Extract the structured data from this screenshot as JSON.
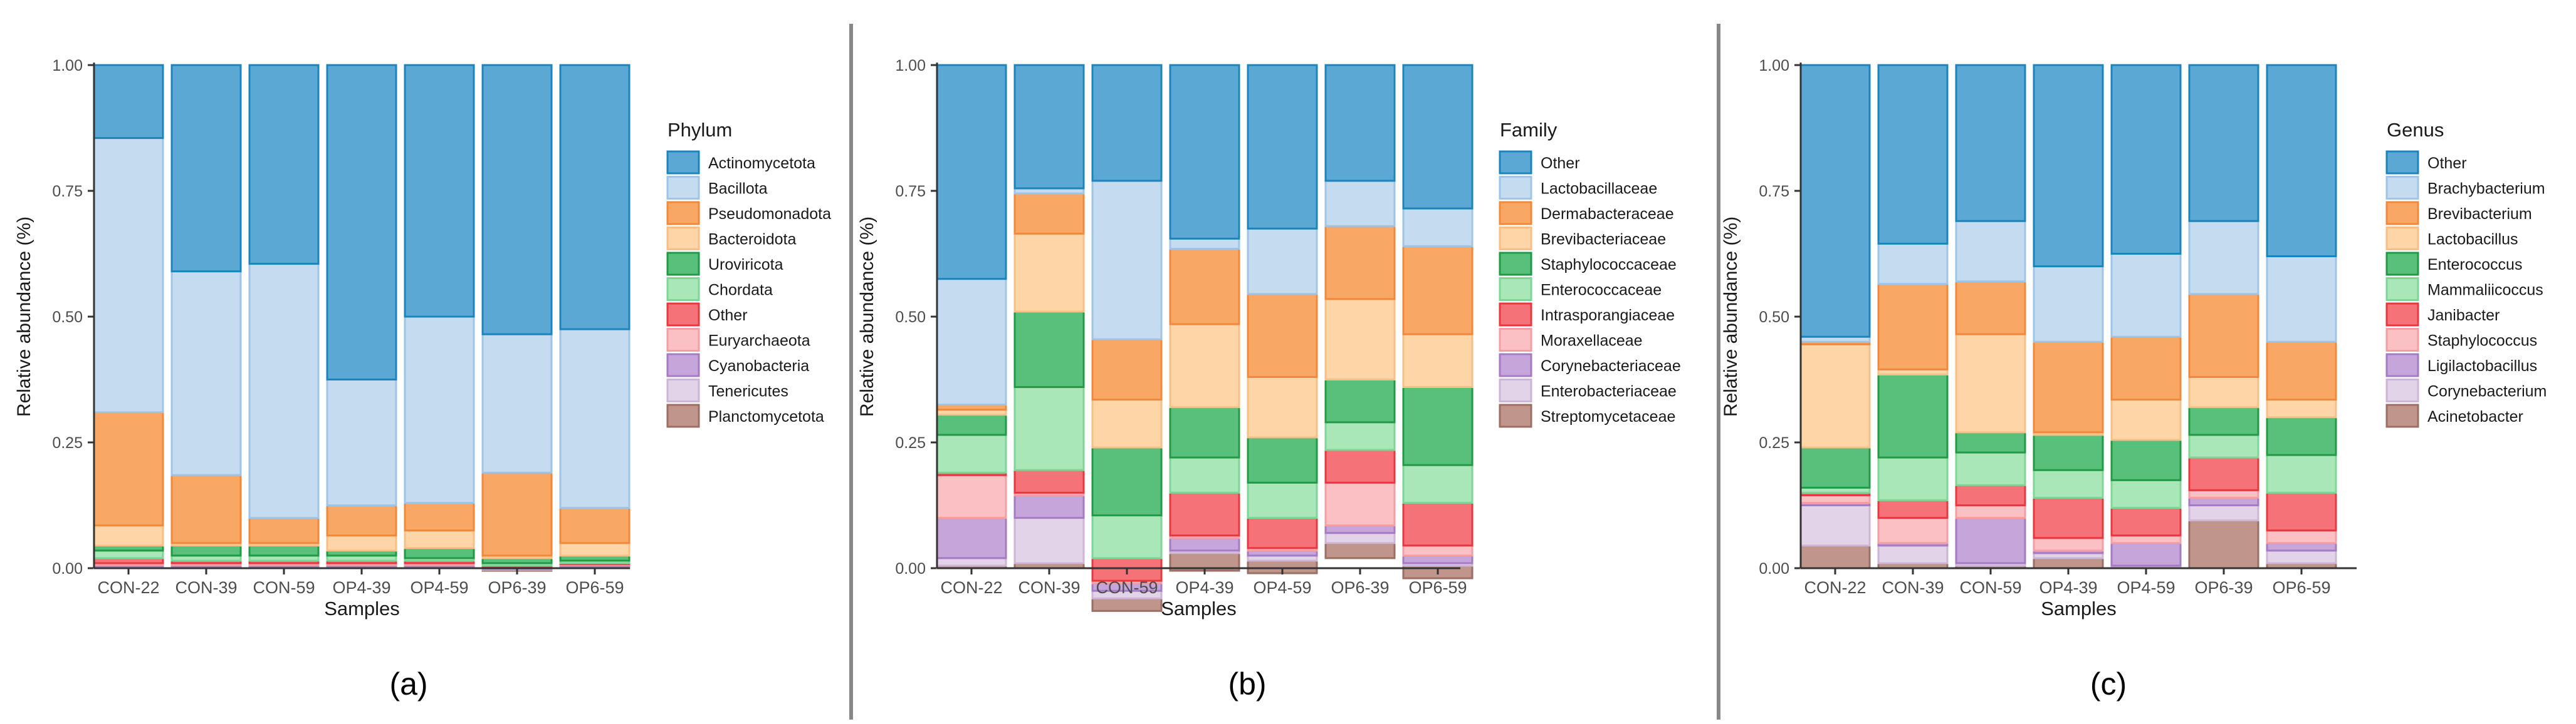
{
  "colors": {
    "palette": [
      "#5ba8d4",
      "#c5dcf0",
      "#f9a765",
      "#fdd5a7",
      "#58c07a",
      "#a9e6b8",
      "#f57279",
      "#fbc0c4",
      "#c5a5da",
      "#e3d3e8",
      "#c0958c"
    ],
    "edges": [
      "#1c84bc",
      "#9fc4e6",
      "#f2893a",
      "#f7bf85",
      "#229a45",
      "#7fd596",
      "#e7383f",
      "#f49da3",
      "#a57bc4",
      "#cdb6d5",
      "#9d6e63"
    ],
    "axis": "#333333",
    "divider": "#888888"
  },
  "chart_data": [
    {
      "type": "bar",
      "stacked": true,
      "panel_label": "(a)",
      "xlabel": "Samples",
      "ylabel": "Relative abundance (%)",
      "ylim": [
        0,
        1
      ],
      "yticks": [
        "0.00",
        "0.25",
        "0.50",
        "0.75",
        "1.00"
      ],
      "categories": [
        "CON-22",
        "CON-39",
        "CON-59",
        "OP4-39",
        "OP4-59",
        "OP6-39",
        "OP6-59"
      ],
      "legend_title": "Phylum",
      "series": [
        {
          "name": "Actinomycetota",
          "values": [
            0.145,
            0.41,
            0.395,
            0.625,
            0.5,
            0.535,
            0.525
          ]
        },
        {
          "name": "Bacillota",
          "values": [
            0.545,
            0.405,
            0.505,
            0.25,
            0.37,
            0.275,
            0.355
          ]
        },
        {
          "name": "Pseudomonadota",
          "values": [
            0.225,
            0.135,
            0.05,
            0.06,
            0.055,
            0.165,
            0.07
          ]
        },
        {
          "name": "Bacteroidota",
          "values": [
            0.04,
            0.005,
            0.005,
            0.03,
            0.035,
            0.005,
            0.025
          ]
        },
        {
          "name": "Uroviricota",
          "values": [
            0.01,
            0.02,
            0.02,
            0.01,
            0.02,
            0.01,
            0.01
          ]
        },
        {
          "name": "Chordata",
          "values": [
            0.015,
            0.01,
            0.01,
            0.01,
            0.005,
            0.005,
            0.005
          ]
        },
        {
          "name": "Other",
          "values": [
            0.01,
            0.005,
            0.005,
            0.005,
            0.005,
            0.002,
            0.002
          ]
        },
        {
          "name": "Euryarchaeota",
          "values": [
            0.004,
            0.004,
            0.004,
            0.004,
            0.004,
            0.002,
            0.002
          ]
        },
        {
          "name": "Cyanobacteria",
          "values": [
            0.002,
            0.002,
            0.002,
            0.002,
            0.002,
            0.002,
            0.002
          ]
        },
        {
          "name": "Tenericutes",
          "values": [
            0.002,
            0.002,
            0.002,
            0.002,
            0.002,
            0.002,
            0.002
          ]
        },
        {
          "name": "Planctomycetota",
          "values": [
            0.002,
            0.002,
            0.002,
            0.002,
            0.002,
            0.002,
            0.002
          ]
        }
      ]
    },
    {
      "type": "bar",
      "stacked": true,
      "panel_label": "(b)",
      "xlabel": "Samples",
      "ylabel": "Relative abundance (%)",
      "ylim": [
        0,
        1
      ],
      "yticks": [
        "0.00",
        "0.25",
        "0.50",
        "0.75",
        "1.00"
      ],
      "categories": [
        "CON-22",
        "CON-39",
        "CON-59",
        "OP4-39",
        "OP4-59",
        "OP6-39",
        "OP6-59"
      ],
      "legend_title": "Family",
      "series": [
        {
          "name": "Other",
          "values": [
            0.425,
            0.245,
            0.23,
            0.345,
            0.325,
            0.23,
            0.285
          ]
        },
        {
          "name": "Lactobacillaceae",
          "values": [
            0.25,
            0.01,
            0.315,
            0.02,
            0.13,
            0.09,
            0.075
          ]
        },
        {
          "name": "Dermabacteraceae",
          "values": [
            0.01,
            0.08,
            0.12,
            0.15,
            0.165,
            0.145,
            0.175
          ]
        },
        {
          "name": "Brevibacteriaceae",
          "values": [
            0.01,
            0.155,
            0.095,
            0.165,
            0.12,
            0.16,
            0.105
          ]
        },
        {
          "name": "Staphylococcaceae",
          "values": [
            0.04,
            0.15,
            0.135,
            0.1,
            0.09,
            0.085,
            0.155
          ]
        },
        {
          "name": "Enterococcaceae",
          "values": [
            0.075,
            0.165,
            0.085,
            0.07,
            0.07,
            0.055,
            0.075
          ]
        },
        {
          "name": "Intrasporangiaceae",
          "values": [
            0.005,
            0.045,
            0.045,
            0.085,
            0.06,
            0.065,
            0.085
          ]
        },
        {
          "name": "Moraxellaceae",
          "values": [
            0.085,
            0.005,
            0.005,
            0.005,
            0.005,
            0.085,
            0.02
          ]
        },
        {
          "name": "Corynebacteriaceae",
          "values": [
            0.08,
            0.045,
            0.015,
            0.025,
            0.01,
            0.015,
            0.015
          ]
        },
        {
          "name": "Enterobacteriaceae",
          "values": [
            0.015,
            0.09,
            0.015,
            0.005,
            0.01,
            0.02,
            0.005
          ]
        },
        {
          "name": "Streptomycetaceae",
          "values": [
            0.005,
            0.01,
            0.025,
            0.035,
            0.025,
            0.03,
            0.025
          ]
        }
      ]
    },
    {
      "type": "bar",
      "stacked": true,
      "panel_label": "(c)",
      "xlabel": "Samples",
      "ylabel": "Relative abundance (%)",
      "ylim": [
        0,
        1
      ],
      "yticks": [
        "0.00",
        "0.25",
        "0.50",
        "0.75",
        "1.00"
      ],
      "categories": [
        "CON-22",
        "CON-39",
        "CON-59",
        "OP4-39",
        "OP4-59",
        "OP6-39",
        "OP6-59"
      ],
      "legend_title": "Genus",
      "series": [
        {
          "name": "Other",
          "values": [
            0.54,
            0.355,
            0.31,
            0.4,
            0.375,
            0.31,
            0.38
          ]
        },
        {
          "name": "Brachybacterium",
          "values": [
            0.01,
            0.08,
            0.12,
            0.15,
            0.165,
            0.145,
            0.17
          ]
        },
        {
          "name": "Brevibacterium",
          "values": [
            0.005,
            0.17,
            0.105,
            0.18,
            0.125,
            0.165,
            0.115
          ]
        },
        {
          "name": "Lactobacillus",
          "values": [
            0.205,
            0.01,
            0.195,
            0.005,
            0.08,
            0.06,
            0.035
          ]
        },
        {
          "name": "Enterococcus",
          "values": [
            0.08,
            0.165,
            0.04,
            0.07,
            0.08,
            0.055,
            0.075
          ]
        },
        {
          "name": "Mammaliicoccus",
          "values": [
            0.01,
            0.085,
            0.065,
            0.055,
            0.055,
            0.045,
            0.075
          ]
        },
        {
          "name": "Janibacter",
          "values": [
            0.005,
            0.035,
            0.04,
            0.08,
            0.055,
            0.065,
            0.075
          ]
        },
        {
          "name": "Staphylococcus",
          "values": [
            0.015,
            0.05,
            0.025,
            0.025,
            0.015,
            0.015,
            0.025
          ]
        },
        {
          "name": "Ligilactobacillus",
          "values": [
            0.005,
            0.005,
            0.09,
            0.005,
            0.045,
            0.015,
            0.015
          ]
        },
        {
          "name": "Corynebacterium",
          "values": [
            0.08,
            0.035,
            0.005,
            0.01,
            0.002,
            0.03,
            0.025
          ]
        },
        {
          "name": "Acinetobacter",
          "values": [
            0.045,
            0.01,
            0.005,
            0.02,
            0.003,
            0.095,
            0.01
          ]
        }
      ]
    }
  ]
}
